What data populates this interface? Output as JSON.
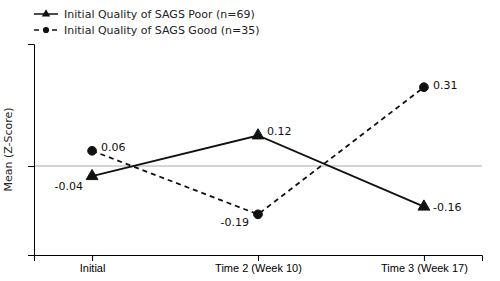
{
  "chart_data": {
    "type": "line",
    "y_label": "Mean (Z-Score)",
    "categories": [
      "Initial",
      "Time 2 (Week 10)",
      "Time 3 (Week 17)"
    ],
    "series": [
      {
        "name": "Initial Quality of SAGS Poor (n=69)",
        "color": "#111111",
        "marker": "triangle",
        "line_style": "solid",
        "values": [
          -0.04,
          0.12,
          -0.16
        ]
      },
      {
        "name": "Initial Quality of SAGS Good (n=35)",
        "color": "#111111",
        "marker": "circle",
        "line_style": "dashed",
        "values": [
          0.06,
          -0.19,
          0.31
        ]
      }
    ],
    "ylim": [
      -0.35,
      0.48
    ],
    "yticks": [
      0
    ],
    "grid": true,
    "tick_labels": "x",
    "data_labels": true,
    "legend": "upper left"
  }
}
